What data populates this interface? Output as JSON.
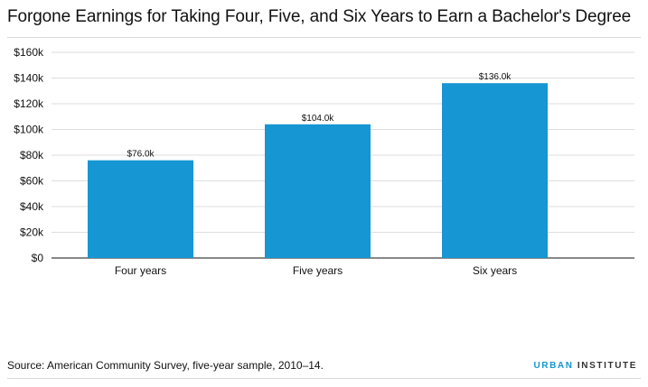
{
  "title": "Forgone Earnings for Taking Four, Five, and Six Years to Earn a Bachelor's Degree",
  "source": "Source: American Community Survey, five-year sample, 2010–14.",
  "brand": {
    "part1": "URBAN",
    "part2": " INSTITUTE"
  },
  "colors": {
    "bar": "#1696d2",
    "brand": "#1696d2"
  },
  "chart_data": {
    "type": "bar",
    "categories": [
      "Four years",
      "Five years",
      "Six years"
    ],
    "values": [
      76000,
      104000,
      136000
    ],
    "data_labels": [
      "$76.0k",
      "$104.0k",
      "$136.0k"
    ],
    "title": "Forgone Earnings for Taking Four, Five, and Six Years to Earn a Bachelor's Degree",
    "xlabel": "",
    "ylabel": "",
    "ylim": [
      0,
      160000
    ],
    "yticks": [
      0,
      20000,
      40000,
      60000,
      80000,
      100000,
      120000,
      140000,
      160000
    ],
    "ytick_labels": [
      "$0",
      "$20k",
      "$40k",
      "$60k",
      "$80k",
      "$100k",
      "$120k",
      "$140k",
      "$160k"
    ],
    "grid": true,
    "legend": "none"
  }
}
